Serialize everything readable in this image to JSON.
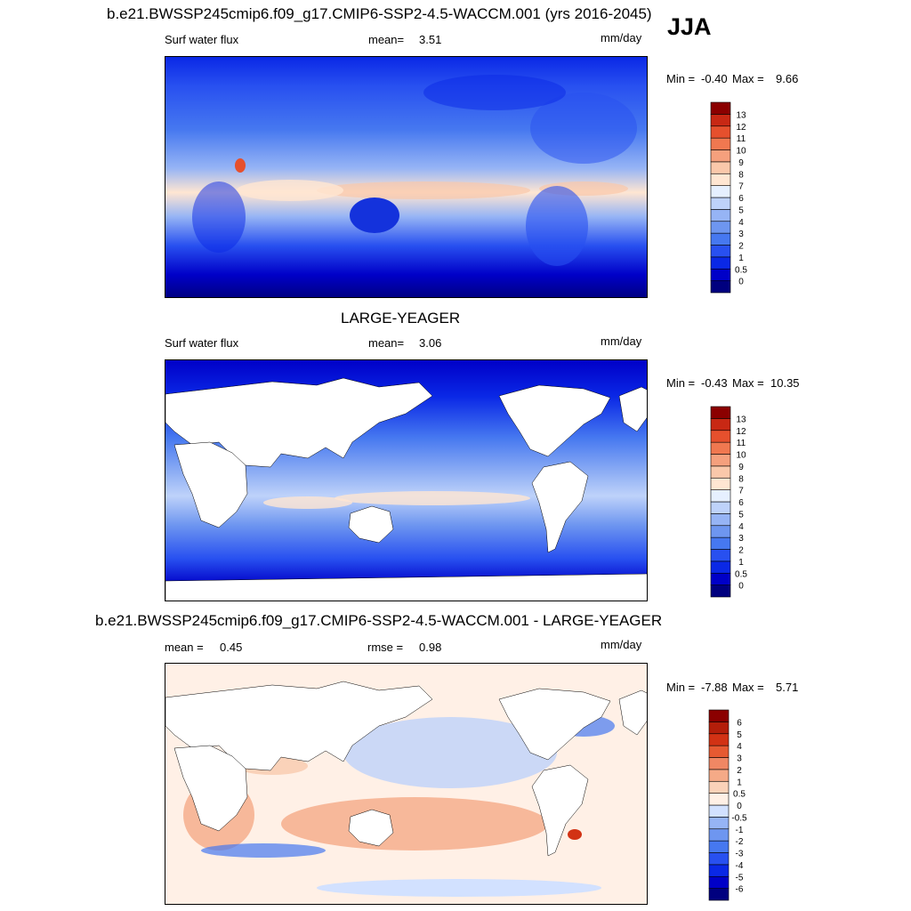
{
  "season": "JJA",
  "units": "mm/day",
  "panels": [
    {
      "title": "b.e21.BWSSP245cmip6.f09_g17.CMIP6-SSP2-4.5-WACCM.001 (yrs 2016-2045)",
      "variable": "Surf water flux",
      "stat_label": "mean=",
      "stat_value": "3.51",
      "units": "mm/day",
      "min_label": "Min =",
      "min_value": "-0.40",
      "max_label": "Max =",
      "max_value": "9.66"
    },
    {
      "title": "LARGE-YEAGER",
      "variable": "Surf water flux",
      "stat_label": "mean=",
      "stat_value": "3.06",
      "units": "mm/day",
      "min_label": "Min =",
      "min_value": "-0.43",
      "max_label": "Max =",
      "max_value": "10.35"
    },
    {
      "title": "b.e21.BWSSP245cmip6.f09_g17.CMIP6-SSP2-4.5-WACCM.001 - LARGE-YEAGER",
      "stat_label": "mean =",
      "stat_value": "0.45",
      "stat2_label": "rmse =",
      "stat2_value": "0.98",
      "units": "mm/day",
      "min_label": "Min =",
      "min_value": "-7.88",
      "max_label": "Max =",
      "max_value": "5.71"
    }
  ],
  "chart_data": [
    {
      "type": "heatmap",
      "title": "b.e21.BWSSP245cmip6.f09_g17.CMIP6-SSP2-4.5-WACCM.001 (yrs 2016-2045)",
      "subtitle": "Surf water flux",
      "season": "JJA",
      "units": "mm/day",
      "mean": 3.51,
      "min": -0.4,
      "max": 9.66,
      "colorbar_levels": [
        "0",
        "0.5",
        "1",
        "2",
        "3",
        "4",
        "5",
        "6",
        "7",
        "8",
        "9",
        "10",
        "11",
        "12",
        "13"
      ],
      "colorbar_colors": [
        "#00007f",
        "#0000c8",
        "#0a28e6",
        "#2850f0",
        "#4678f0",
        "#6e96f0",
        "#96b4f5",
        "#bed2fa",
        "#e6f0ff",
        "#ffe6d2",
        "#fac8aa",
        "#f5a07d",
        "#f07850",
        "#e6502d",
        "#c82814",
        "#8b0000"
      ]
    },
    {
      "type": "heatmap",
      "title": "LARGE-YEAGER",
      "subtitle": "Surf water flux",
      "units": "mm/day",
      "mean": 3.06,
      "min": -0.43,
      "max": 10.35,
      "colorbar_levels": [
        "0",
        "0.5",
        "1",
        "2",
        "3",
        "4",
        "5",
        "6",
        "7",
        "8",
        "9",
        "10",
        "11",
        "12",
        "13"
      ],
      "colorbar_colors": [
        "#00007f",
        "#0000c8",
        "#0a28e6",
        "#2850f0",
        "#4678f0",
        "#6e96f0",
        "#96b4f5",
        "#bed2fa",
        "#e6f0ff",
        "#ffe6d2",
        "#fac8aa",
        "#f5a07d",
        "#f07850",
        "#e6502d",
        "#c82814",
        "#8b0000"
      ]
    },
    {
      "type": "heatmap",
      "title": "b.e21.BWSSP245cmip6.f09_g17.CMIP6-SSP2-4.5-WACCM.001 - LARGE-YEAGER",
      "units": "mm/day",
      "mean": 0.45,
      "rmse": 0.98,
      "min": -7.88,
      "max": 5.71,
      "colorbar_levels": [
        "-6",
        "-5",
        "-4",
        "-3",
        "-2",
        "-1",
        "-0.5",
        "0",
        "0.5",
        "1",
        "2",
        "3",
        "4",
        "5",
        "6"
      ],
      "colorbar_colors": [
        "#00007f",
        "#0000c8",
        "#0a28e6",
        "#2850f0",
        "#4678f0",
        "#6e96f0",
        "#96b4f5",
        "#d2e1ff",
        "#fff0e6",
        "#fad2b9",
        "#f5aa87",
        "#f08764",
        "#e65a32",
        "#d23214",
        "#b41e0a",
        "#8b0000"
      ]
    }
  ]
}
